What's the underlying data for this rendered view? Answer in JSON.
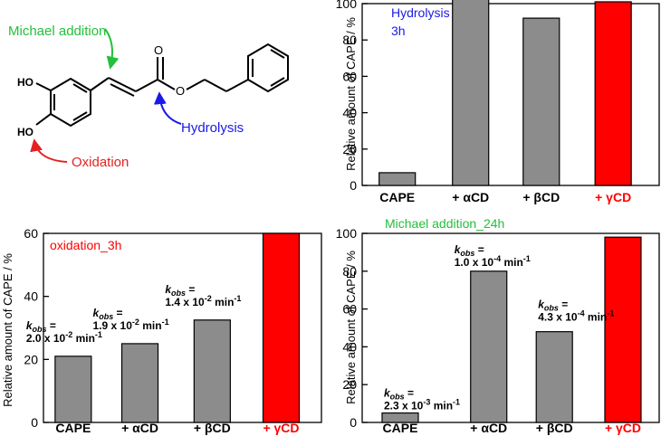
{
  "molecule": {
    "labels": {
      "ho_top": "HO",
      "ho_bottom": "HO",
      "carbonyl_o": "O",
      "ester_o": "O"
    },
    "annotations": [
      {
        "text": "Michael addition",
        "color": "#22c03a"
      },
      {
        "text": "Hydrolysis",
        "color": "#1a1ae6"
      },
      {
        "text": "Oxidation",
        "color": "#e62020"
      }
    ]
  },
  "colors": {
    "grey_bar": "#8c8c8c",
    "red_bar": "#ff0000",
    "bar_edge": "#000000",
    "hydrolysis": "#1a1ae6",
    "oxidation": "#ff0000",
    "michael": "#22c03a"
  },
  "chart_data": [
    {
      "id": "hydrolysis",
      "type": "bar",
      "title": "Hydrolysis\n3h",
      "ylabel": "Relative amount of CAPE / %",
      "ylim": [
        0,
        100
      ],
      "yticks": [
        0,
        20,
        40,
        60,
        80,
        100
      ],
      "categories": [
        "CAPE",
        "+ αCD",
        "+ βCD",
        "+ γCD"
      ],
      "values": [
        7,
        103,
        92,
        101
      ],
      "bar_colors": [
        "#8c8c8c",
        "#8c8c8c",
        "#8c8c8c",
        "#ff0000"
      ],
      "label_colors": [
        "#000000",
        "#000000",
        "#000000",
        "#ff0000"
      ],
      "annotations": []
    },
    {
      "id": "oxidation",
      "type": "bar",
      "title": "oxidation_3h",
      "ylabel": "Relative amount of CAPE / %",
      "ylim": [
        0,
        60
      ],
      "yticks": [
        0,
        20,
        40,
        60
      ],
      "categories": [
        "CAPE",
        "+ αCD",
        "+ βCD",
        "+ γCD"
      ],
      "values": [
        21,
        25,
        32.5,
        60
      ],
      "bar_colors": [
        "#8c8c8c",
        "#8c8c8c",
        "#8c8c8c",
        "#ff0000"
      ],
      "label_colors": [
        "#000000",
        "#000000",
        "#000000",
        "#ff0000"
      ],
      "annotations": [
        {
          "bar": 0,
          "lines": [
            "kobs =",
            "2.0 x 10-2 min-1"
          ]
        },
        {
          "bar": 1,
          "lines": [
            "kobs =",
            "1.9 x 10-2 min-1"
          ]
        },
        {
          "bar": 2,
          "lines": [
            "kobs =",
            "1.4 x 10-2 min-1"
          ]
        }
      ]
    },
    {
      "id": "michael",
      "type": "bar",
      "title": "Michael addition_24h",
      "ylabel": "Relative amount of CAPE / %",
      "ylim": [
        0,
        100
      ],
      "yticks": [
        0,
        20,
        40,
        60,
        80,
        100
      ],
      "categories": [
        "CAPE",
        "+ αCD",
        "+ βCD",
        "+ γCD"
      ],
      "values": [
        5,
        80,
        48,
        98
      ],
      "bar_colors": [
        "#8c8c8c",
        "#8c8c8c",
        "#8c8c8c",
        "#ff0000"
      ],
      "label_colors": [
        "#000000",
        "#000000",
        "#000000",
        "#ff0000"
      ],
      "annotations": [
        {
          "bar": 0,
          "lines": [
            "kobs =",
            "2.3 x 10-3 min-1"
          ]
        },
        {
          "bar": 1,
          "lines": [
            "kobs =",
            "1.0 x 10-4 min-1"
          ]
        },
        {
          "bar": 2,
          "lines": [
            "kobs =",
            "4.3 x 10-4 min-1"
          ]
        }
      ]
    }
  ]
}
